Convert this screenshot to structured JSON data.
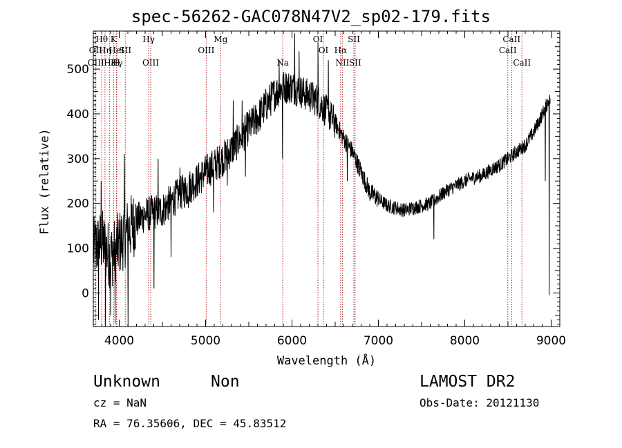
{
  "chart_data": {
    "type": "line",
    "title": "spec-56262-GAC078N47V2_sp02-179.fits",
    "xlabel": "Wavelength (Å)",
    "ylabel": "Flux (relative)",
    "xlim": [
      3700,
      9100
    ],
    "ylim": [
      -75,
      585
    ],
    "xticks": [
      4000,
      5000,
      6000,
      7000,
      8000,
      9000
    ],
    "yticks": [
      0,
      100,
      200,
      300,
      400,
      500
    ],
    "line_color": "#000000",
    "marker_color": "#b22222",
    "grid": false,
    "lines": [
      {
        "label": "Hθ",
        "x": 3798,
        "row": 1
      },
      {
        "label": "OII",
        "x": 3727,
        "row": 2
      },
      {
        "label": "Hη",
        "x": 3835,
        "row": 2
      },
      {
        "label": "OIII",
        "x": 3730,
        "row": 3
      },
      {
        "label": "Hε",
        "x": 3889,
        "row": 3
      },
      {
        "label": "K",
        "x": 3934,
        "row": 1
      },
      {
        "label": "HeI",
        "x": 3970,
        "row": 2
      },
      {
        "label": "Hγ",
        "x": 3971,
        "row": 3
      },
      {
        "label": "SII",
        "x": 4070,
        "row": 2
      },
      {
        "label": "H",
        "x": 3968,
        "row": 3
      },
      {
        "label": "Hγ",
        "x": 4341,
        "row": 1
      },
      {
        "label": "OIII",
        "x": 4364,
        "row": 3
      },
      {
        "label": "Mg",
        "x": 5175,
        "row": 1
      },
      {
        "label": "OIII",
        "x": 5007,
        "row": 2
      },
      {
        "label": "Na",
        "x": 5893,
        "row": 3
      },
      {
        "label": "OI",
        "x": 6300,
        "row": 1
      },
      {
        "label": "OI",
        "x": 6364,
        "row": 2
      },
      {
        "label": "SII",
        "x": 6716,
        "row": 1
      },
      {
        "label": "Hα",
        "x": 6563,
        "row": 2
      },
      {
        "label": "NII",
        "x": 6583,
        "row": 3
      },
      {
        "label": "SII",
        "x": 6731,
        "row": 3
      },
      {
        "label": "CaII",
        "x": 8542,
        "row": 1
      },
      {
        "label": "CaII",
        "x": 8498,
        "row": 2
      },
      {
        "label": "CaII",
        "x": 8662,
        "row": 3
      }
    ],
    "continuum": [
      [
        3700,
        95
      ],
      [
        3800,
        115
      ],
      [
        3900,
        80
      ],
      [
        4000,
        110
      ],
      [
        4100,
        140
      ],
      [
        4200,
        160
      ],
      [
        4300,
        175
      ],
      [
        4400,
        180
      ],
      [
        4500,
        185
      ],
      [
        4600,
        205
      ],
      [
        4700,
        220
      ],
      [
        4800,
        235
      ],
      [
        4900,
        250
      ],
      [
        5000,
        270
      ],
      [
        5100,
        285
      ],
      [
        5200,
        300
      ],
      [
        5300,
        320
      ],
      [
        5400,
        345
      ],
      [
        5500,
        370
      ],
      [
        5600,
        390
      ],
      [
        5700,
        420
      ],
      [
        5800,
        445
      ],
      [
        5900,
        460
      ],
      [
        6000,
        460
      ],
      [
        6100,
        450
      ],
      [
        6200,
        440
      ],
      [
        6300,
        430
      ],
      [
        6400,
        405
      ],
      [
        6500,
        380
      ],
      [
        6600,
        345
      ],
      [
        6700,
        315
      ],
      [
        6800,
        270
      ],
      [
        6900,
        225
      ],
      [
        7000,
        210
      ],
      [
        7100,
        195
      ],
      [
        7200,
        190
      ],
      [
        7300,
        185
      ],
      [
        7400,
        190
      ],
      [
        7500,
        195
      ],
      [
        7600,
        200
      ],
      [
        7700,
        215
      ],
      [
        7800,
        230
      ],
      [
        7900,
        240
      ],
      [
        8000,
        250
      ],
      [
        8100,
        258
      ],
      [
        8200,
        262
      ],
      [
        8300,
        275
      ],
      [
        8400,
        285
      ],
      [
        8500,
        300
      ],
      [
        8600,
        315
      ],
      [
        8700,
        330
      ],
      [
        8800,
        360
      ],
      [
        8900,
        400
      ],
      [
        8970,
        430
      ]
    ],
    "spikes": [
      [
        3760,
        -60
      ],
      [
        3790,
        250
      ],
      [
        3840,
        -75
      ],
      [
        3900,
        -50
      ],
      [
        3950,
        -70
      ],
      [
        4060,
        310
      ],
      [
        4100,
        -75
      ],
      [
        4400,
        10
      ],
      [
        4450,
        300
      ],
      [
        4600,
        80
      ],
      [
        4700,
        280
      ],
      [
        4800,
        190
      ],
      [
        5090,
        180
      ],
      [
        5250,
        240
      ],
      [
        5320,
        430
      ],
      [
        5420,
        430
      ],
      [
        5460,
        260
      ],
      [
        5850,
        520
      ],
      [
        5890,
        300
      ],
      [
        6030,
        580
      ],
      [
        6080,
        540
      ],
      [
        6300,
        560
      ],
      [
        6420,
        520
      ],
      [
        6640,
        250
      ],
      [
        7640,
        120
      ],
      [
        8930,
        250
      ],
      [
        8960,
        430
      ],
      [
        8975,
        -5
      ],
      [
        8990,
        80
      ]
    ]
  },
  "info": {
    "object_class": "Unknown",
    "object_subclass": "Non",
    "survey": "LAMOST DR2",
    "cz": "cz = NaN",
    "obs_date": "Obs-Date: 20121130",
    "radec": "RA =  76.35606, DEC =  45.83512"
  }
}
